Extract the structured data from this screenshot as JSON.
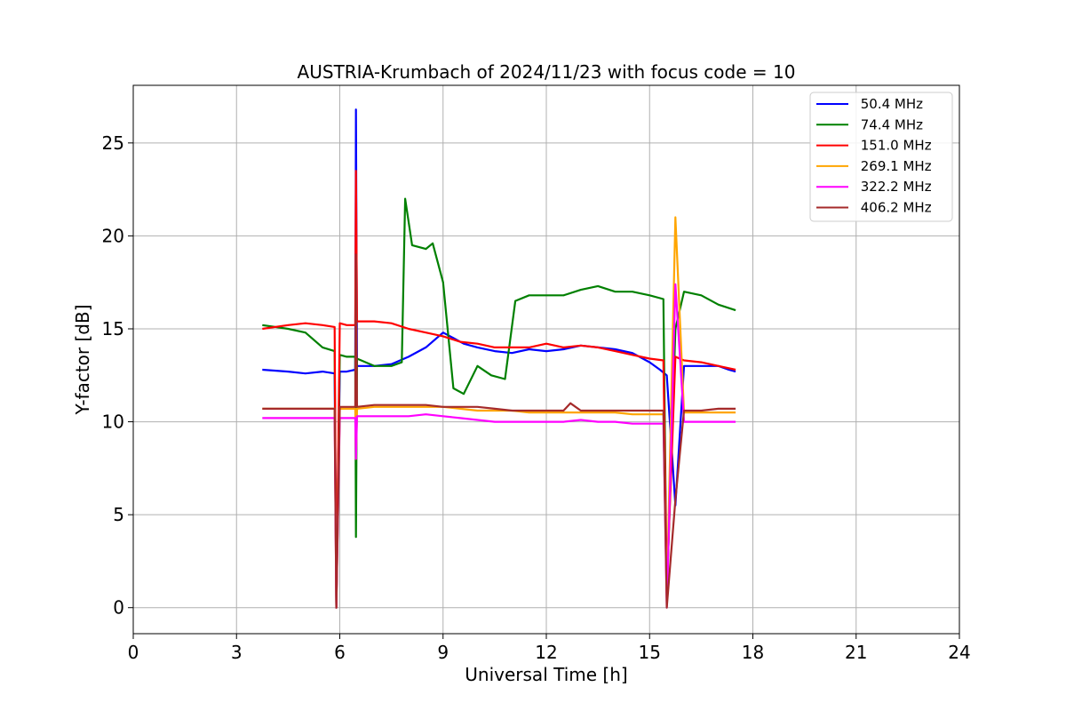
{
  "chart_data": {
    "type": "line",
    "title": "AUSTRIA-Krumbach of 2024/11/23 with focus code = 10",
    "xlabel": "Universal Time [h]",
    "ylabel": "Y-factor [dB]",
    "xlim": [
      0,
      24
    ],
    "ylim": [
      -1.4,
      28.1
    ],
    "xticks": [
      0,
      3,
      6,
      9,
      12,
      15,
      18,
      21,
      24
    ],
    "yticks": [
      0,
      5,
      10,
      15,
      20,
      25
    ],
    "grid": true,
    "legend_position": "top-right",
    "series": [
      {
        "name": " 50.4 MHz",
        "color": "#0000ff",
        "x": [
          3.75,
          4.5,
          5.0,
          5.5,
          5.85,
          5.9,
          6.0,
          6.2,
          6.45,
          6.47,
          6.5,
          7.0,
          7.5,
          8.0,
          8.5,
          9.0,
          9.3,
          9.6,
          10.0,
          10.5,
          11.0,
          11.5,
          12.0,
          12.5,
          13.0,
          13.5,
          14.0,
          14.5,
          15.0,
          15.3,
          15.5,
          15.75,
          16.0,
          16.5,
          17.0,
          17.3,
          17.5
        ],
        "y": [
          12.8,
          12.7,
          12.6,
          12.7,
          12.6,
          0.0,
          12.7,
          12.7,
          12.8,
          26.8,
          13.0,
          13.0,
          13.1,
          13.5,
          14.0,
          14.8,
          14.5,
          14.2,
          14.0,
          13.8,
          13.7,
          13.9,
          13.8,
          13.9,
          14.1,
          14.0,
          13.9,
          13.7,
          13.2,
          12.8,
          12.5,
          5.5,
          13.0,
          13.0,
          13.0,
          12.8,
          12.7
        ]
      },
      {
        "name": " 74.4 MHz",
        "color": "#008000",
        "x": [
          3.75,
          4.5,
          5.0,
          5.5,
          5.85,
          5.9,
          6.0,
          6.2,
          6.45,
          6.47,
          6.5,
          7.0,
          7.5,
          7.8,
          7.9,
          8.1,
          8.5,
          8.7,
          9.0,
          9.3,
          9.6,
          10.0,
          10.4,
          10.8,
          11.1,
          11.5,
          12.0,
          12.5,
          13.0,
          13.5,
          14.0,
          14.5,
          15.0,
          15.4,
          15.5,
          15.75,
          16.0,
          16.5,
          17.0,
          17.5
        ],
        "y": [
          15.2,
          15.0,
          14.8,
          14.0,
          13.8,
          0.0,
          13.6,
          13.5,
          13.5,
          3.8,
          13.4,
          13.0,
          13.0,
          13.2,
          22.0,
          19.5,
          19.3,
          19.6,
          17.5,
          11.8,
          11.5,
          13.0,
          12.5,
          12.3,
          16.5,
          16.8,
          16.8,
          16.8,
          17.1,
          17.3,
          17.0,
          17.0,
          16.8,
          16.6,
          0.5,
          15.0,
          17.0,
          16.8,
          16.3,
          16.0
        ]
      },
      {
        "name": " 151.0 MHz",
        "color": "#ff0000",
        "x": [
          3.75,
          4.5,
          5.0,
          5.5,
          5.85,
          5.9,
          6.0,
          6.2,
          6.45,
          6.47,
          6.5,
          7.0,
          7.5,
          8.0,
          8.5,
          9.0,
          9.5,
          10.0,
          10.5,
          11.0,
          11.5,
          12.0,
          12.5,
          13.0,
          13.5,
          14.0,
          14.5,
          15.0,
          15.4,
          15.5,
          15.75,
          16.0,
          16.5,
          17.0,
          17.5
        ],
        "y": [
          15.0,
          15.2,
          15.3,
          15.2,
          15.1,
          0.0,
          15.3,
          15.2,
          15.2,
          23.5,
          15.4,
          15.4,
          15.3,
          15.0,
          14.8,
          14.6,
          14.3,
          14.2,
          14.0,
          14.0,
          14.0,
          14.2,
          14.0,
          14.1,
          14.0,
          13.8,
          13.6,
          13.4,
          13.3,
          1.0,
          13.5,
          13.3,
          13.2,
          13.0,
          12.8
        ]
      },
      {
        "name": " 269.1 MHz",
        "color": "#ffa500",
        "x": [
          3.75,
          4.5,
          5.0,
          5.5,
          5.85,
          5.9,
          6.0,
          6.2,
          6.45,
          6.47,
          6.5,
          7.0,
          7.5,
          8.0,
          8.5,
          9.0,
          9.5,
          10.0,
          10.5,
          11.0,
          11.5,
          12.0,
          12.5,
          13.0,
          13.5,
          14.0,
          14.5,
          15.0,
          15.4,
          15.5,
          15.75,
          16.0,
          16.5,
          17.0,
          17.5
        ],
        "y": [
          10.7,
          10.7,
          10.7,
          10.7,
          10.7,
          0.0,
          10.7,
          10.7,
          10.7,
          8.0,
          10.7,
          10.8,
          10.8,
          10.8,
          10.8,
          10.8,
          10.7,
          10.6,
          10.6,
          10.6,
          10.5,
          10.5,
          10.5,
          10.5,
          10.5,
          10.5,
          10.4,
          10.4,
          10.4,
          0.5,
          21.0,
          10.5,
          10.5,
          10.5,
          10.5
        ]
      },
      {
        "name": " 322.2 MHz",
        "color": "#ff00ff",
        "x": [
          3.75,
          4.5,
          5.0,
          5.5,
          5.85,
          5.9,
          6.0,
          6.2,
          6.45,
          6.47,
          6.5,
          7.0,
          7.5,
          8.0,
          8.5,
          9.0,
          9.5,
          10.0,
          10.5,
          11.0,
          11.5,
          12.0,
          12.5,
          13.0,
          13.5,
          14.0,
          14.5,
          15.0,
          15.4,
          15.5,
          15.75,
          16.0,
          16.5,
          17.0,
          17.5
        ],
        "y": [
          10.2,
          10.2,
          10.2,
          10.2,
          10.2,
          0.0,
          10.2,
          10.2,
          10.2,
          8.0,
          10.3,
          10.3,
          10.3,
          10.3,
          10.4,
          10.3,
          10.2,
          10.1,
          10.0,
          10.0,
          10.0,
          10.0,
          10.0,
          10.1,
          10.0,
          10.0,
          9.9,
          9.9,
          9.9,
          0.0,
          17.4,
          10.0,
          10.0,
          10.0,
          10.0
        ]
      },
      {
        "name": " 406.2 MHz",
        "color": "#a52a2a",
        "x": [
          3.75,
          4.5,
          5.0,
          5.5,
          5.85,
          5.9,
          6.0,
          6.2,
          6.45,
          6.47,
          6.5,
          7.0,
          7.5,
          8.0,
          8.5,
          9.0,
          9.5,
          10.0,
          10.5,
          11.0,
          11.5,
          12.0,
          12.5,
          12.7,
          13.0,
          13.5,
          14.0,
          14.5,
          15.0,
          15.4,
          15.5,
          15.75,
          16.0,
          16.5,
          17.0,
          17.5
        ],
        "y": [
          10.7,
          10.7,
          10.7,
          10.7,
          10.7,
          0.0,
          10.8,
          10.8,
          10.8,
          19.0,
          10.8,
          10.9,
          10.9,
          10.9,
          10.9,
          10.8,
          10.8,
          10.8,
          10.7,
          10.6,
          10.6,
          10.6,
          10.6,
          11.0,
          10.6,
          10.6,
          10.6,
          10.6,
          10.6,
          10.6,
          0.0,
          5.8,
          10.6,
          10.6,
          10.7,
          10.7
        ]
      }
    ]
  }
}
